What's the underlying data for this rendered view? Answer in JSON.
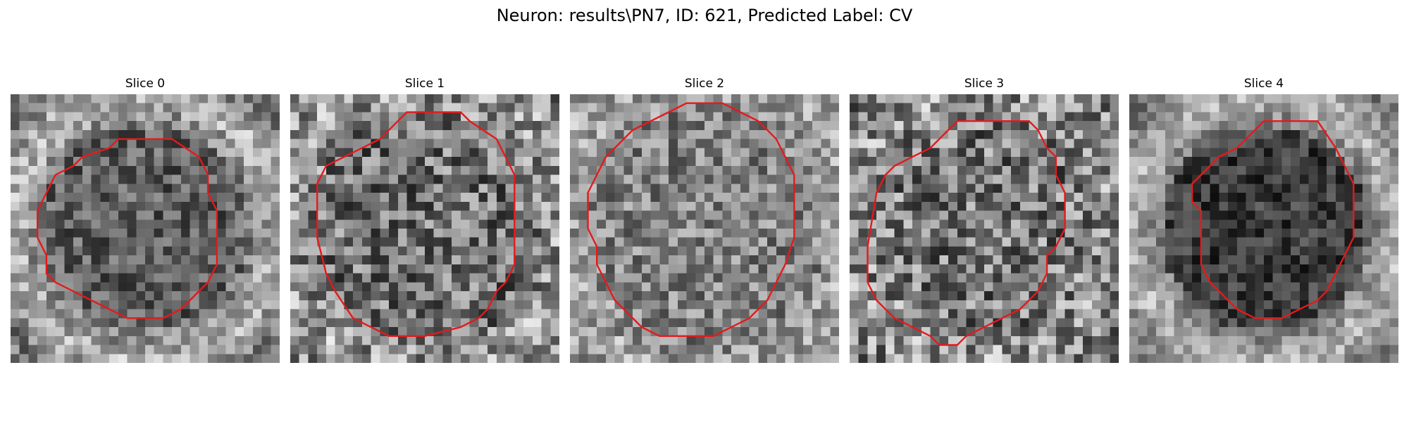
{
  "figure": {
    "title": "Neuron: results\\PN7, ID: 621, Predicted Label: CV"
  },
  "colors": {
    "background": "#ffffff",
    "contour": "#e41a1c"
  },
  "panels": [
    {
      "title": "Slice 0",
      "contour": [
        [
          18,
          5
        ],
        [
          21,
          7
        ],
        [
          22,
          9
        ],
        [
          22,
          11
        ],
        [
          23,
          13
        ],
        [
          23,
          19
        ],
        [
          22,
          21
        ],
        [
          21,
          22
        ],
        [
          19,
          24
        ],
        [
          17,
          25
        ],
        [
          13,
          25
        ],
        [
          11,
          24
        ],
        [
          9,
          23
        ],
        [
          5,
          21
        ],
        [
          4,
          20
        ],
        [
          4,
          18
        ],
        [
          3,
          16
        ],
        [
          3,
          13
        ],
        [
          4,
          11
        ],
        [
          5,
          9
        ],
        [
          7,
          8
        ],
        [
          8,
          7
        ],
        [
          11,
          6
        ],
        [
          12,
          5
        ]
      ],
      "bg": {
        "seed": 17,
        "base": 0.45,
        "centerDark": 0.08,
        "ringBright": 0.25,
        "noise": 0.22,
        "ringR": 12.5
      }
    },
    {
      "title": "Slice 1",
      "contour": [
        [
          20,
          3
        ],
        [
          23,
          5
        ],
        [
          24,
          7
        ],
        [
          25,
          9
        ],
        [
          25,
          19
        ],
        [
          24,
          21
        ],
        [
          23,
          22
        ],
        [
          22,
          24
        ],
        [
          21,
          25
        ],
        [
          19,
          26
        ],
        [
          15,
          27
        ],
        [
          11,
          27
        ],
        [
          9,
          26
        ],
        [
          7,
          25
        ],
        [
          5,
          22
        ],
        [
          4,
          20
        ],
        [
          3,
          16
        ],
        [
          3,
          10
        ],
        [
          4,
          8
        ],
        [
          6,
          7
        ],
        [
          8,
          6
        ],
        [
          10,
          5
        ],
        [
          12,
          3
        ],
        [
          13,
          2
        ],
        [
          19,
          2
        ]
      ],
      "bg": {
        "seed": 29,
        "base": 0.5,
        "centerDark": 0.05,
        "ringBright": 0.12,
        "noise": 0.32,
        "ringR": 14
      }
    },
    {
      "title": "Slice 2",
      "contour": [
        [
          21,
          3
        ],
        [
          23,
          5
        ],
        [
          24,
          7
        ],
        [
          25,
          9
        ],
        [
          25,
          16
        ],
        [
          24,
          19
        ],
        [
          23,
          21
        ],
        [
          22,
          23
        ],
        [
          20,
          25
        ],
        [
          18,
          26
        ],
        [
          16,
          27
        ],
        [
          10,
          27
        ],
        [
          8,
          26
        ],
        [
          6,
          24
        ],
        [
          5,
          23
        ],
        [
          4,
          21
        ],
        [
          3,
          19
        ],
        [
          3,
          17
        ],
        [
          2,
          15
        ],
        [
          2,
          11
        ],
        [
          3,
          9
        ],
        [
          4,
          7
        ],
        [
          5,
          6
        ],
        [
          7,
          4
        ],
        [
          9,
          3
        ],
        [
          11,
          2
        ],
        [
          13,
          1
        ],
        [
          17,
          1
        ],
        [
          19,
          2
        ]
      ],
      "bg": {
        "seed": 43,
        "base": 0.55,
        "centerDark": 0.04,
        "ringBright": 0.1,
        "noise": 0.25,
        "ringR": 14.5
      }
    },
    {
      "title": "Slice 3",
      "contour": [
        [
          21,
          4
        ],
        [
          22,
          6
        ],
        [
          23,
          7
        ],
        [
          23,
          9
        ],
        [
          24,
          11
        ],
        [
          24,
          15
        ],
        [
          23,
          17
        ],
        [
          22,
          18
        ],
        [
          22,
          20
        ],
        [
          21,
          22
        ],
        [
          20,
          23
        ],
        [
          19,
          24
        ],
        [
          17,
          25
        ],
        [
          15,
          26
        ],
        [
          13,
          27
        ],
        [
          12,
          28
        ],
        [
          10,
          28
        ],
        [
          9,
          27
        ],
        [
          7,
          26
        ],
        [
          5,
          25
        ],
        [
          4,
          24
        ],
        [
          3,
          23
        ],
        [
          2,
          21
        ],
        [
          2,
          17
        ],
        [
          3,
          11
        ],
        [
          4,
          9
        ],
        [
          5,
          8
        ],
        [
          7,
          7
        ],
        [
          9,
          6
        ],
        [
          10,
          5
        ],
        [
          11,
          4
        ],
        [
          12,
          3
        ],
        [
          20,
          3
        ]
      ],
      "bg": {
        "seed": 59,
        "base": 0.5,
        "centerDark": 0.03,
        "ringBright": 0.08,
        "noise": 0.34,
        "ringR": 12.5
      }
    },
    {
      "title": "Slice 4",
      "contour": [
        [
          23,
          6
        ],
        [
          24,
          8
        ],
        [
          25,
          10
        ],
        [
          25,
          12
        ],
        [
          25,
          16
        ],
        [
          24,
          18
        ],
        [
          23,
          20
        ],
        [
          22,
          22
        ],
        [
          21,
          23
        ],
        [
          19,
          24
        ],
        [
          17,
          25
        ],
        [
          14,
          25
        ],
        [
          12,
          24
        ],
        [
          10,
          22
        ],
        [
          9,
          21
        ],
        [
          8,
          19
        ],
        [
          8,
          13
        ],
        [
          7,
          12
        ],
        [
          7,
          10
        ],
        [
          8,
          9
        ],
        [
          9,
          8
        ],
        [
          10,
          7
        ],
        [
          12,
          6
        ],
        [
          13,
          5
        ],
        [
          14,
          4
        ],
        [
          15,
          3
        ],
        [
          21,
          3
        ]
      ],
      "bg": {
        "seed": 71,
        "base": 0.45,
        "centerDark": 0.22,
        "ringBright": 0.25,
        "noise": 0.18,
        "ringR": 12.5
      }
    }
  ]
}
